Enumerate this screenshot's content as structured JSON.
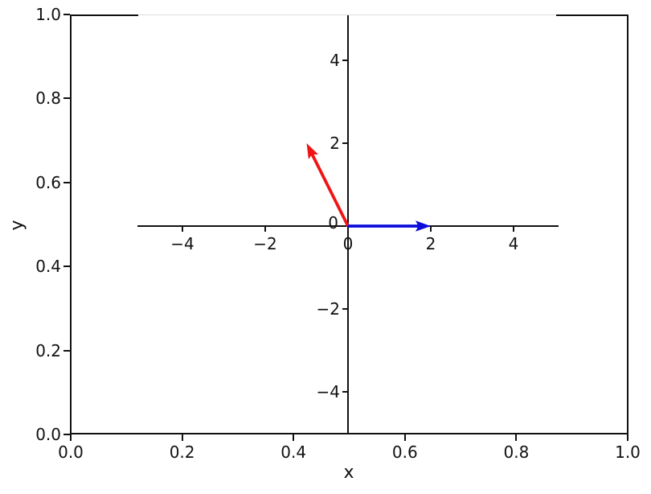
{
  "figure": {
    "background": "#ffffff",
    "text_color": "#111111",
    "spine_color": "#111111"
  },
  "outer_axes": {
    "xlabel": "x",
    "ylabel": "y",
    "xlim": [
      0.0,
      1.0
    ],
    "ylim": [
      0.0,
      1.0
    ],
    "x_ticks": {
      "values": [
        0.0,
        0.2,
        0.4,
        0.6,
        0.8,
        1.0
      ],
      "labels": [
        "0.0",
        "0.2",
        "0.4",
        "0.6",
        "0.8",
        "1.0"
      ]
    },
    "y_ticks": {
      "values": [
        0.0,
        0.2,
        0.4,
        0.6,
        0.8,
        1.0
      ],
      "labels": [
        "0.0",
        "0.2",
        "0.4",
        "0.6",
        "0.8",
        "1.0"
      ]
    }
  },
  "chart_data": {
    "type": "quiver",
    "title": "",
    "xlabel": "x",
    "ylabel": "y",
    "grid": false,
    "legend": false,
    "inner_axes": {
      "xlim": [
        -5,
        5
      ],
      "ylim": [
        -5,
        5
      ],
      "spines": "centered at origin",
      "x_ticks": {
        "values": [
          -4,
          -2,
          0,
          2,
          4
        ],
        "labels": [
          "−4",
          "−2",
          "0",
          "2",
          "4"
        ]
      },
      "y_ticks": {
        "values": [
          -4,
          -2,
          0,
          2,
          4
        ],
        "labels": [
          "−4",
          "−2",
          "0",
          "2",
          "4"
        ]
      }
    },
    "vectors": [
      {
        "name": "red-vector",
        "origin": [
          0,
          0
        ],
        "components": [
          -1,
          2
        ],
        "color": "#f01414"
      },
      {
        "name": "blue-vector",
        "origin": [
          0,
          0
        ],
        "components": [
          2,
          0
        ],
        "color": "#0b0bdc"
      }
    ]
  }
}
